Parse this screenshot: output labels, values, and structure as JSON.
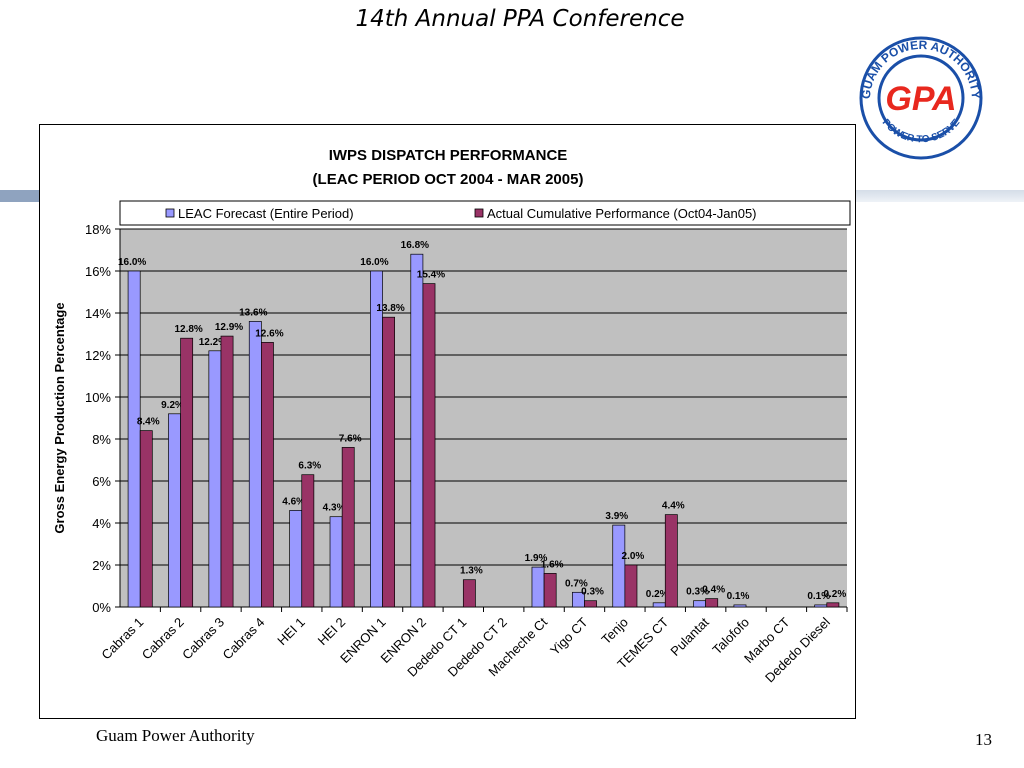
{
  "slide": {
    "title": "14th Annual PPA Conference",
    "footer_left": "Guam Power Authority",
    "page_number": "13"
  },
  "logo": {
    "ring_text_top": "GUAM POWER AUTHORITY",
    "ring_text_bottom": "POWER TO SERVE",
    "center_text": "GPA",
    "colors": {
      "ring": "#1a4fa8",
      "center_text": "#e8281e"
    }
  },
  "colors": {
    "series_leac": "#9999ff",
    "series_actual": "#993366",
    "plot_bg": "#c0c0c0"
  },
  "chart_data": {
    "type": "bar",
    "title": "IWPS DISPATCH PERFORMANCE",
    "subtitle": "(LEAC PERIOD OCT 2004 - MAR 2005)",
    "ylabel": "Gross Energy Production Percentage",
    "xlabel": "",
    "ylim": [
      0,
      18
    ],
    "yticks": [
      "0%",
      "2%",
      "4%",
      "6%",
      "8%",
      "10%",
      "12%",
      "14%",
      "16%",
      "18%"
    ],
    "grid": true,
    "legend_position": "top",
    "categories": [
      "Cabras 1",
      "Cabras 2",
      "Cabras 3",
      "Cabras 4",
      "HEI 1",
      "HEI 2",
      "ENRON 1",
      "ENRON 2",
      "Dededo CT 1",
      "Dededo CT 2",
      "Macheche Ct",
      "Yigo CT",
      "Tenjo",
      "TEMES CT",
      "Pulantat",
      "Talofofo",
      "Marbo CT",
      "Dededo Diesel"
    ],
    "series": [
      {
        "name": "LEAC Forecast (Entire Period)",
        "values": [
          16.0,
          9.2,
          12.2,
          13.6,
          4.6,
          4.3,
          16.0,
          16.8,
          0,
          0,
          1.9,
          0.7,
          3.9,
          0.2,
          0.3,
          0.1,
          0,
          0.1
        ],
        "labels": [
          "16.0%",
          "9.2%",
          "12.2%",
          "13.6%",
          "4.6%",
          "4.3%",
          "16.0%",
          "16.8%",
          "",
          "",
          "1.9%",
          "0.7%",
          "3.9%",
          "0.2%",
          "0.3%",
          "0.1%",
          "",
          "0.1%"
        ]
      },
      {
        "name": "Actual Cumulative Performance (Oct04-Jan05)",
        "values": [
          8.4,
          12.8,
          12.9,
          12.6,
          6.3,
          7.6,
          13.8,
          15.4,
          1.3,
          0,
          1.6,
          0.3,
          2.0,
          4.4,
          0.4,
          0,
          0,
          0.2
        ],
        "labels": [
          "8.4%",
          "12.8%",
          "12.9%",
          "12.6%",
          "6.3%",
          "7.6%",
          "13.8%",
          "15.4%",
          "1.3%",
          "",
          "1.6%",
          "0.3%",
          "2.0%",
          "4.4%",
          "0.4%",
          "",
          "",
          "0.2%"
        ]
      }
    ]
  }
}
